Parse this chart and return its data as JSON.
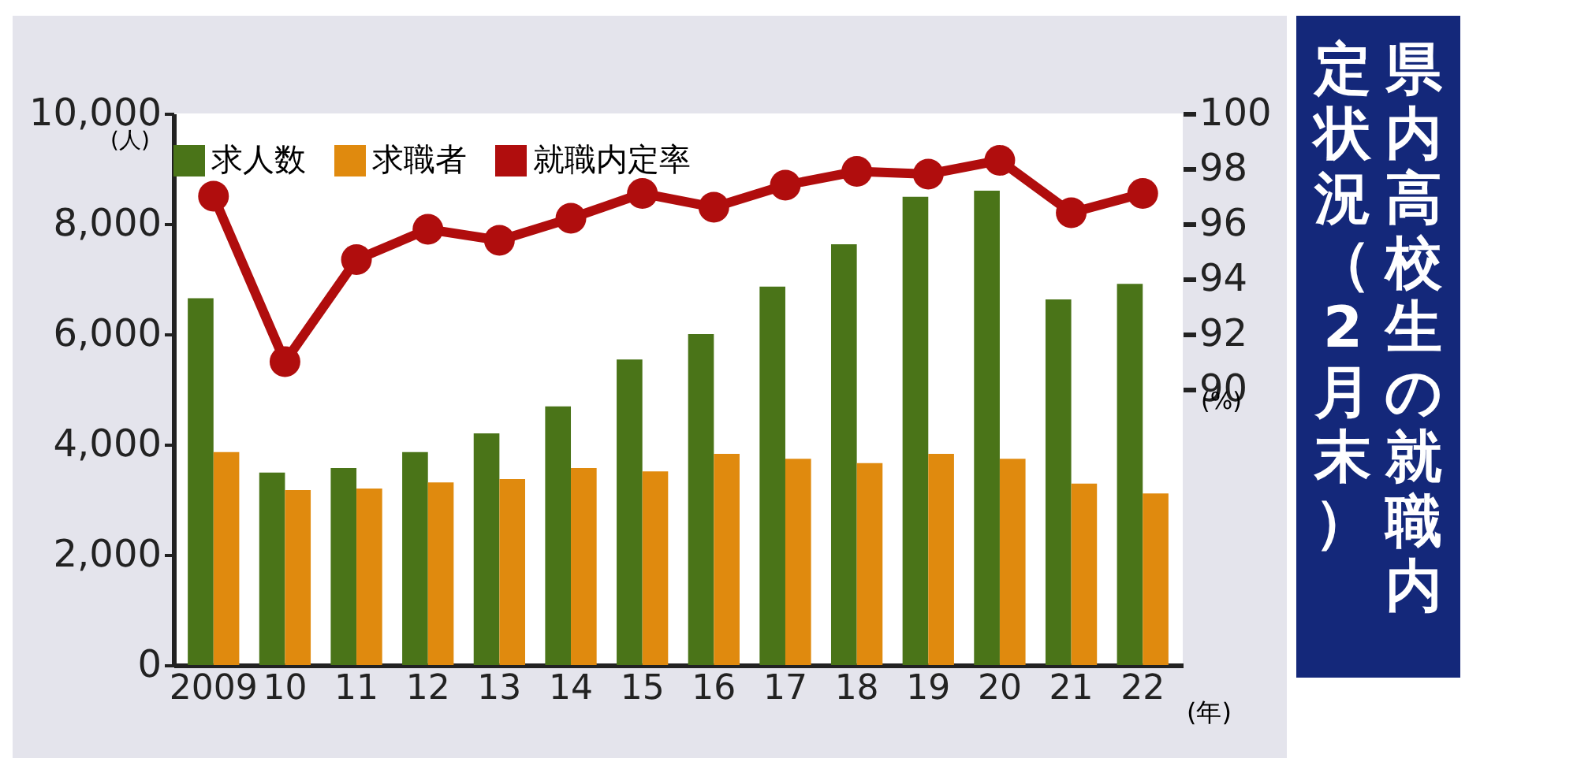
{
  "chart_data": {
    "type": "bar",
    "title": "県内高校生の就職内定状況（2月末）",
    "categories": [
      "2009",
      "10",
      "11",
      "12",
      "13",
      "14",
      "15",
      "16",
      "17",
      "18",
      "19",
      "20",
      "21",
      "22"
    ],
    "xlabel": "(年)",
    "ylabel": "(人)",
    "y2label": "(%)",
    "series": [
      {
        "name": "求人数",
        "color": "#4a7418",
        "values": [
          6650,
          3490,
          3570,
          3860,
          4200,
          4690,
          5540,
          6000,
          6860,
          7630,
          8490,
          8600,
          6630,
          6910
        ]
      },
      {
        "name": "求職者",
        "color": "#e08a0e",
        "values": [
          3860,
          3170,
          3200,
          3310,
          3370,
          3570,
          3510,
          3830,
          3740,
          3660,
          3830,
          3740,
          3290,
          3110
        ]
      },
      {
        "name": "就職内定率",
        "type": "line",
        "axis": "y2",
        "color": "#b00d0d",
        "values": [
          97.0,
          91.0,
          94.7,
          95.8,
          95.4,
          96.2,
          97.1,
          96.6,
          97.4,
          97.9,
          97.8,
          98.3,
          96.4,
          97.1
        ]
      }
    ],
    "ylim": [
      0,
      10000
    ],
    "yticks": [
      0,
      {
        "value": 2000,
        "label": "2,000"
      },
      {
        "value": 4000,
        "label": "4,000"
      },
      {
        "value": 6000,
        "label": "6,000"
      },
      {
        "value": 8000,
        "label": "8,000"
      },
      {
        "value": 10000,
        "label": "10,000"
      }
    ],
    "y2lim": [
      80,
      100
    ],
    "y2ticks": [
      90,
      92,
      94,
      96,
      98,
      100
    ],
    "legend": "top",
    "marker": "circle"
  }
}
